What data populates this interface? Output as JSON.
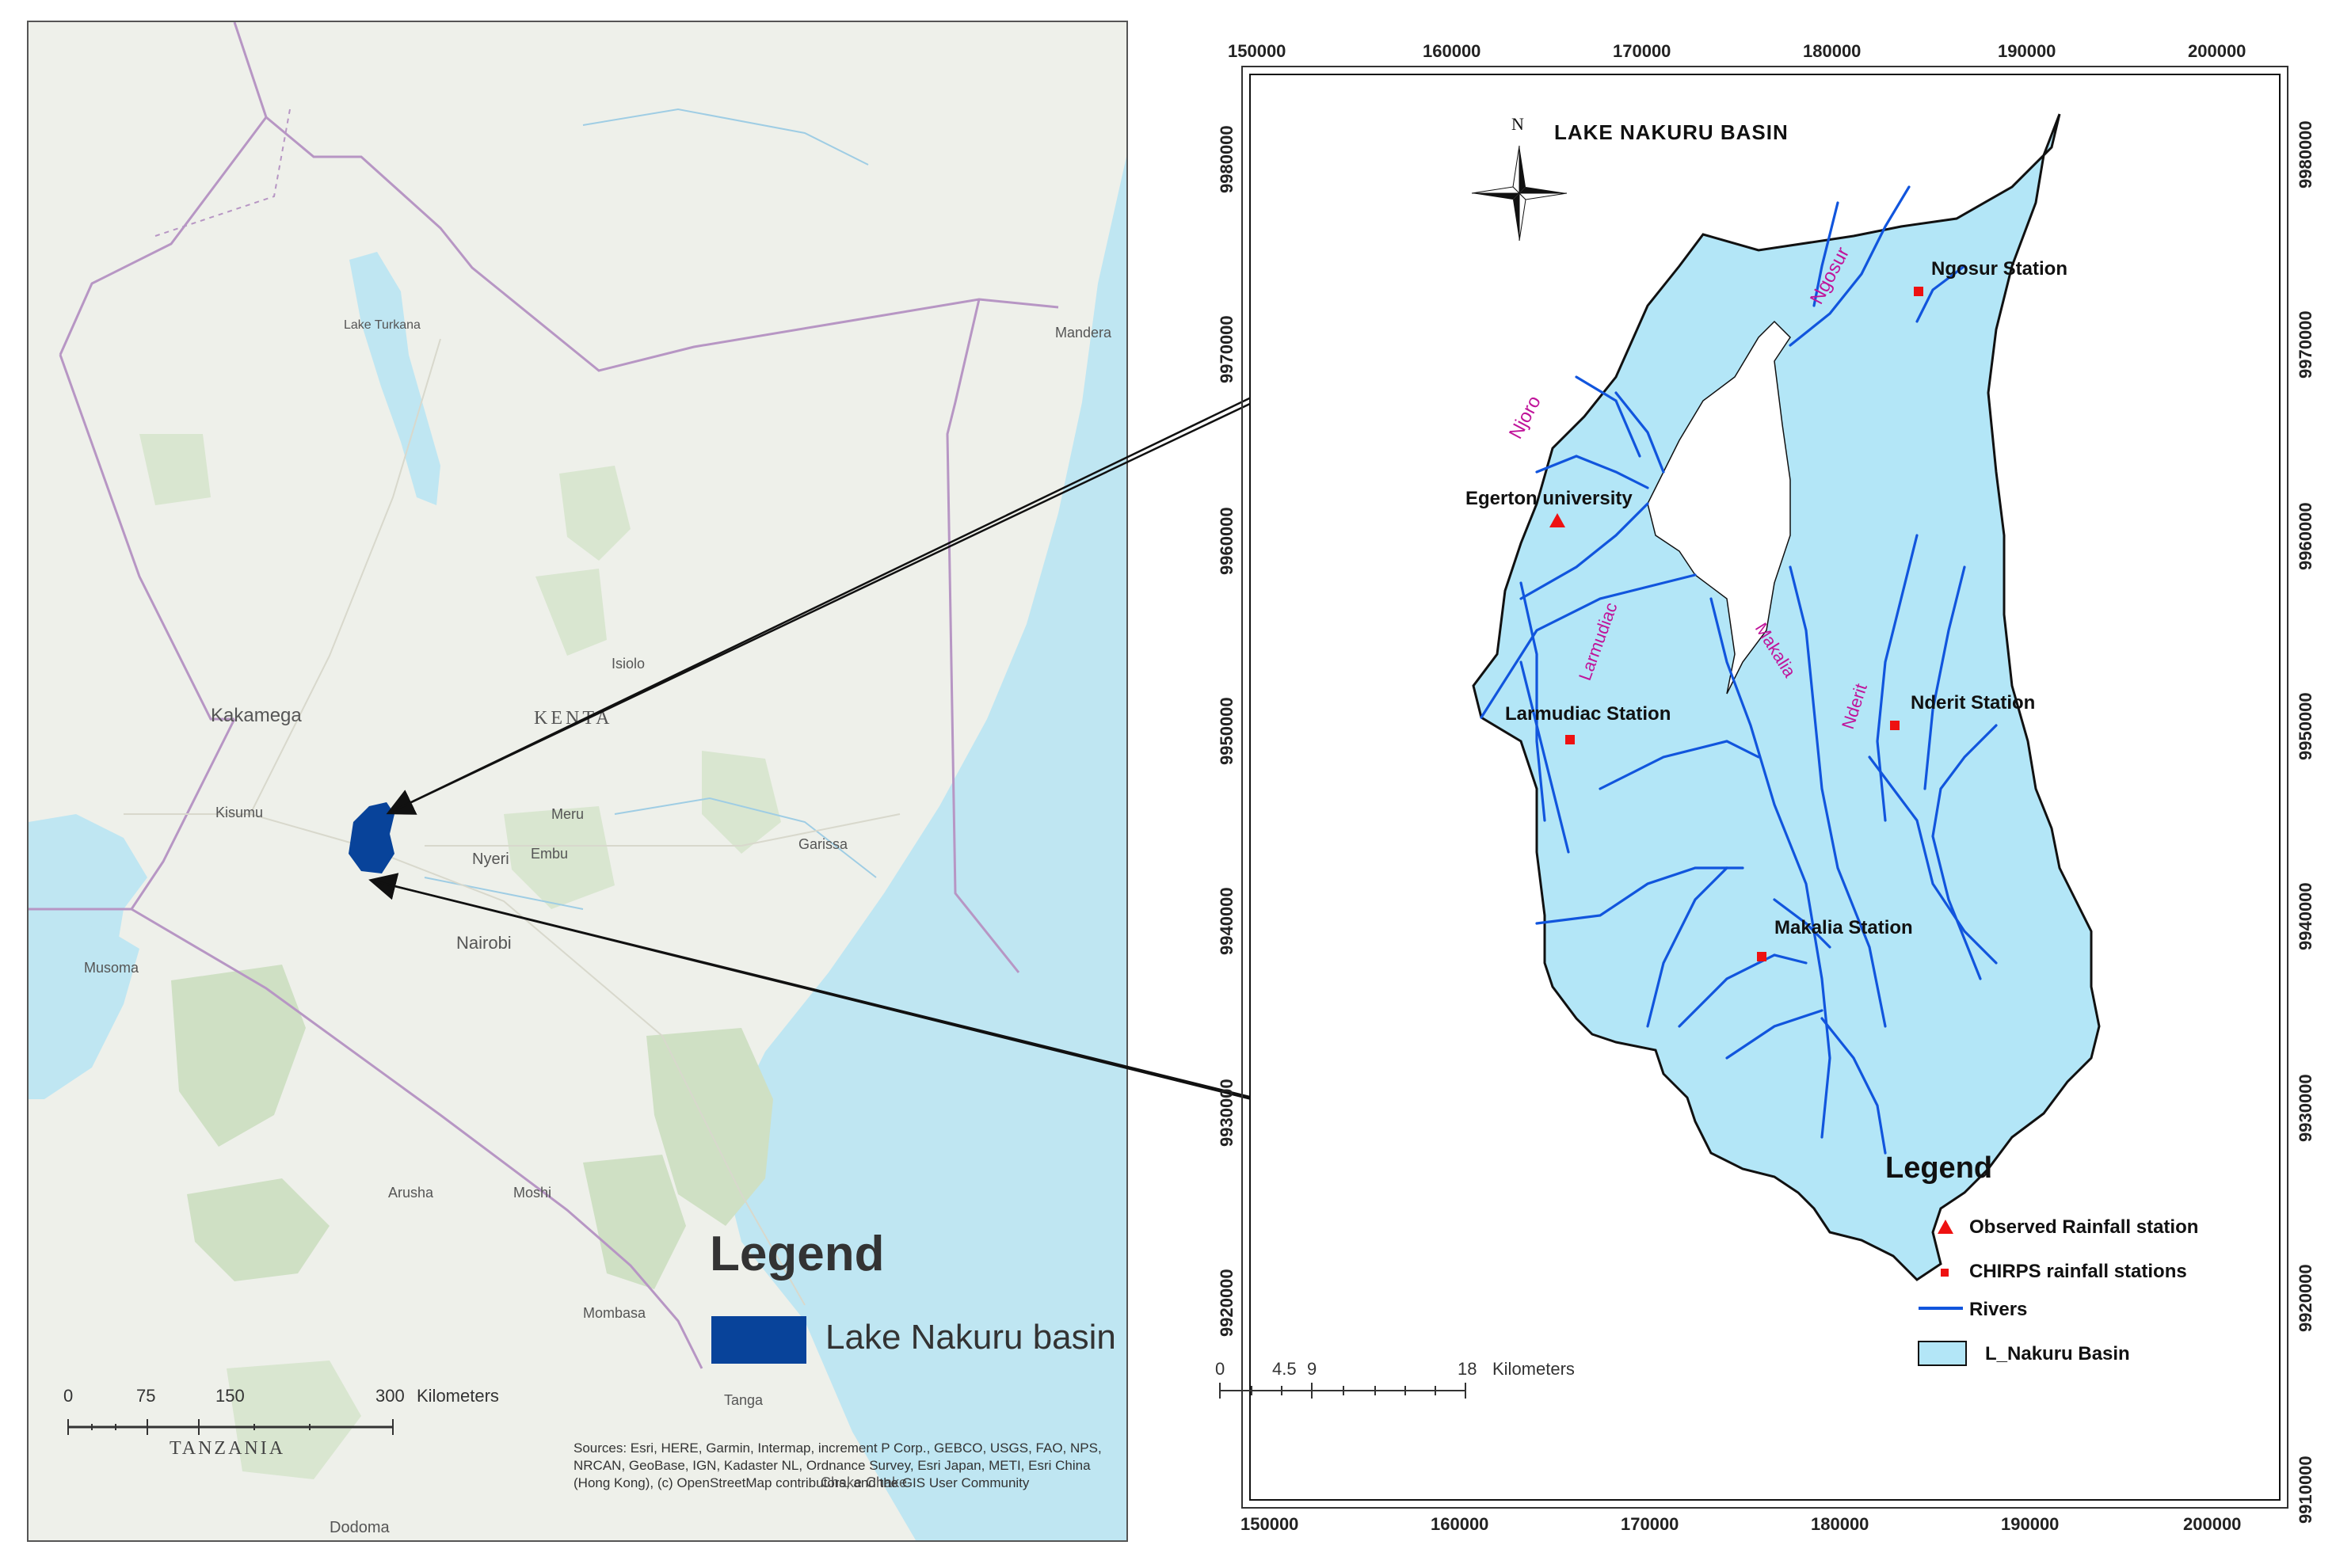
{
  "left_map": {
    "legend_title": "Legend",
    "legend_item": "Lake Nakuru basin",
    "legend_color": "#08439a",
    "scale_ticks": [
      "0",
      "75",
      "150",
      "300"
    ],
    "scale_unit": "Kilometers",
    "country_label": "KENTA",
    "bottom_label": "TANZANIA",
    "places": [
      "Kakamega",
      "Kisumu",
      "Nairobi",
      "Nyeri",
      "Garissa",
      "Lake Turkana",
      "Mombasa",
      "Arusha",
      "Moshi",
      "Tanga",
      "Dodoma",
      "Musoma",
      "Mandera",
      "Meru",
      "Embu",
      "Isiolo",
      "Chake Chake"
    ],
    "attribution": "Sources: Esri, HERE, Garmin, Intermap, increment P Corp., GEBCO, USGS, FAO, NPS, NRCAN, GeoBase, IGN, Kadaster NL, Ordnance Survey, Esri Japan, METI, Esri China (Hong Kong), (c) OpenStreetMap contributors, and the GIS User Community"
  },
  "right_map": {
    "title": "LAKE NAKURU BASIN",
    "north_label": "N",
    "x_ticks": [
      "150000",
      "160000",
      "170000",
      "180000",
      "190000",
      "200000"
    ],
    "y_ticks": [
      "9980000",
      "9970000",
      "9960000",
      "9950000",
      "9940000",
      "9930000",
      "9920000",
      "9910000"
    ],
    "stations": {
      "egerton": "Egerton university",
      "ngosur": "Ngosur Station",
      "larmudiac": "Larmudiac Station",
      "nderit": "Nderit Station",
      "makalia": "Makalia Station"
    },
    "rivers": {
      "njoro": "Njoro",
      "ngosur": "Ngosur",
      "larmudiac": "Larmudiac",
      "makalia": "Makalia",
      "nderit": "Nderit"
    },
    "legend": {
      "title": "Legend",
      "observed": "Observed Rainfall station",
      "chirps": "CHIRPS rainfall stations",
      "rivers": "Rivers",
      "basin": "L_Nakuru Basin"
    },
    "scale_ticks": [
      "0",
      "4.5",
      "9",
      "18"
    ],
    "scale_unit": "Kilometers",
    "colors": {
      "basin_fill": "#b3e6f7",
      "river": "#1155dd",
      "station": "#ee1111",
      "river_label": "#c0149a"
    }
  }
}
